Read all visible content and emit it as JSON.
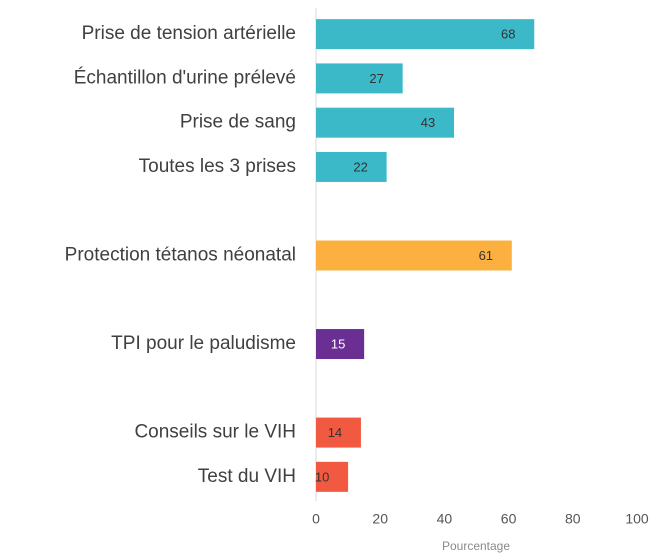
{
  "chart_data": {
    "type": "barh",
    "categories": [
      "Prise de tension artérielle",
      "Échantillon d'urine prélevé",
      "Prise de sang",
      "Toutes les 3 prises",
      null,
      "Protection tétanos néonatal",
      null,
      "TPI pour le paludisme",
      null,
      "Conseils sur le VIH",
      "Test du VIH"
    ],
    "values": [
      68,
      27,
      43,
      22,
      null,
      61,
      null,
      15,
      null,
      14,
      10
    ],
    "colors": [
      "#3cb9c9",
      "#3cb9c9",
      "#3cb9c9",
      "#3cb9c9",
      null,
      "#fbb040",
      null,
      "#6b2f94",
      null,
      "#f15a40",
      "#f15a40"
    ],
    "xlabel": "Pourcentage",
    "xlim": [
      0,
      100
    ],
    "xticks": [
      0,
      20,
      40,
      60,
      80,
      100
    ],
    "grid": false
  }
}
